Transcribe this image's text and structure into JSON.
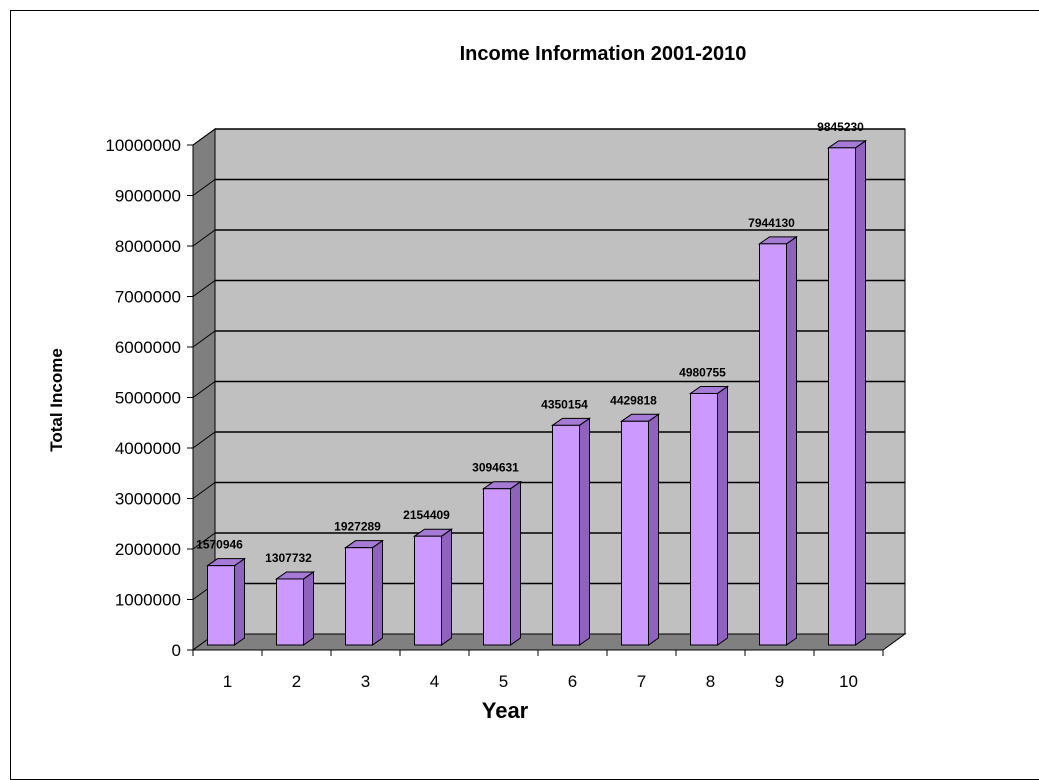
{
  "chart_data": {
    "type": "bar",
    "title": "Income Information 2001-2010",
    "xlabel": "Year",
    "ylabel": "Total Income",
    "categories": [
      "1",
      "2",
      "3",
      "4",
      "5",
      "6",
      "7",
      "8",
      "9",
      "10"
    ],
    "values": [
      1570946,
      1307732,
      1927289,
      2154409,
      3094631,
      4350154,
      4429818,
      4980755,
      7944130,
      9845230
    ],
    "data_labels": [
      "1570946",
      "1307732",
      "1927289",
      "2154409",
      "3094631",
      "4350154",
      "4429818",
      "4980755",
      "7944130",
      "9845230"
    ],
    "yticks": [
      "0",
      "1000000",
      "2000000",
      "3000000",
      "4000000",
      "5000000",
      "6000000",
      "7000000",
      "8000000",
      "9000000",
      "10000000"
    ],
    "ylim": [
      0,
      10000000
    ],
    "ytick_step": 1000000,
    "grid": true,
    "legend": "none",
    "colors": {
      "bar_front": "#cc99ff",
      "bar_side": "#8e62bd",
      "bar_top": "#a57bd6",
      "back_wall": "#c0c0c0",
      "side_wall": "#7f7f7f",
      "floor": "#808080"
    }
  }
}
